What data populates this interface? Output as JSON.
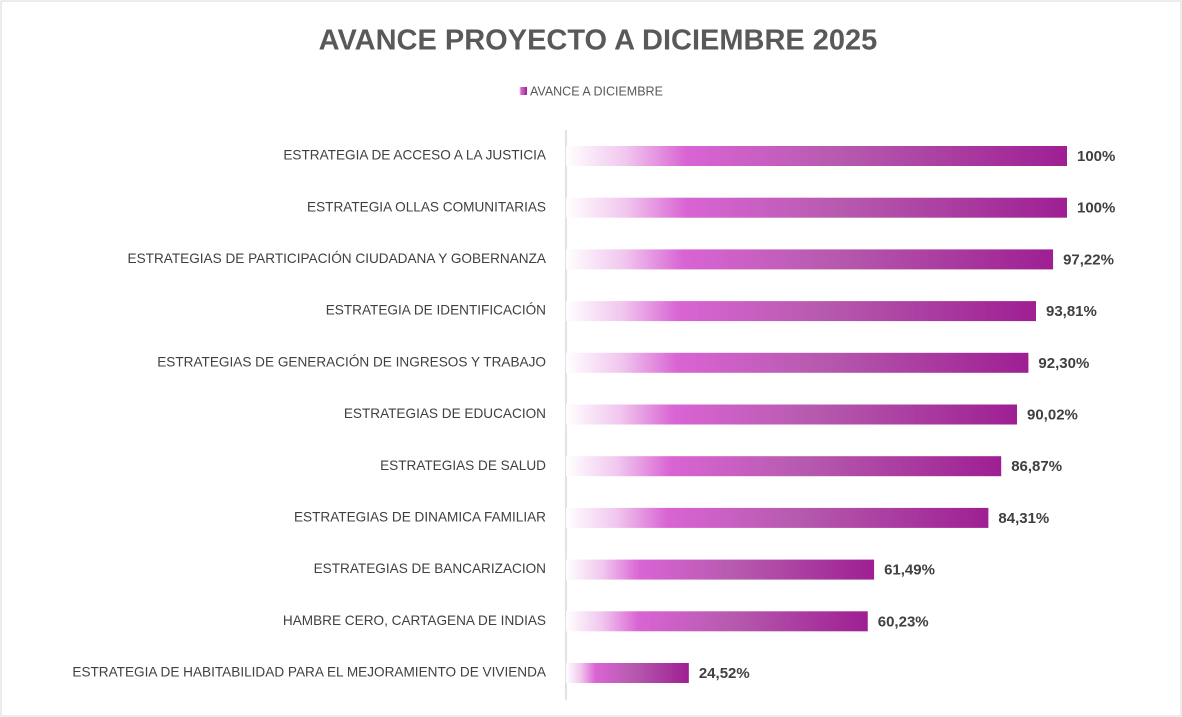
{
  "chart_data": {
    "type": "bar",
    "orientation": "horizontal",
    "title": "AVANCE  PROYECTO A DICIEMBRE 2025",
    "series": [
      {
        "name": "AVANCE  A DICIEMBRE",
        "color": "#a0269a",
        "values": [
          100,
          100,
          97.22,
          93.81,
          92.3,
          90.02,
          86.87,
          84.31,
          61.49,
          60.23,
          24.52
        ],
        "value_labels": [
          "100%",
          "100%",
          "97,22%",
          "93,81%",
          "92,30%",
          "90,02%",
          "86,87%",
          "84,31%",
          "61,49%",
          "60,23%",
          "24,52%"
        ]
      }
    ],
    "categories": [
      "ESTRATEGIA DE ACCESO A LA JUSTICIA",
      "ESTRATEGIA OLLAS COMUNITARIAS",
      "ESTRATEGIAS DE PARTICIPACIÓN CIUDADANA Y GOBERNANZA",
      "ESTRATEGIA DE IDENTIFICACIÓN",
      "ESTRATEGIAS DE GENERACIÓN DE INGRESOS Y TRABAJO",
      "ESTRATEGIAS DE EDUCACION",
      "ESTRATEGIAS DE SALUD",
      "ESTRATEGIAS DE DINAMICA FAMILIAR",
      "ESTRATEGIAS DE BANCARIZACION",
      "HAMBRE CERO, CARTAGENA DE INDIAS",
      "ESTRATEGIA DE HABITABILIDAD PARA EL MEJORAMIENTO DE VIVIENDA"
    ],
    "xlim": [
      0,
      100
    ],
    "legend": "top"
  }
}
